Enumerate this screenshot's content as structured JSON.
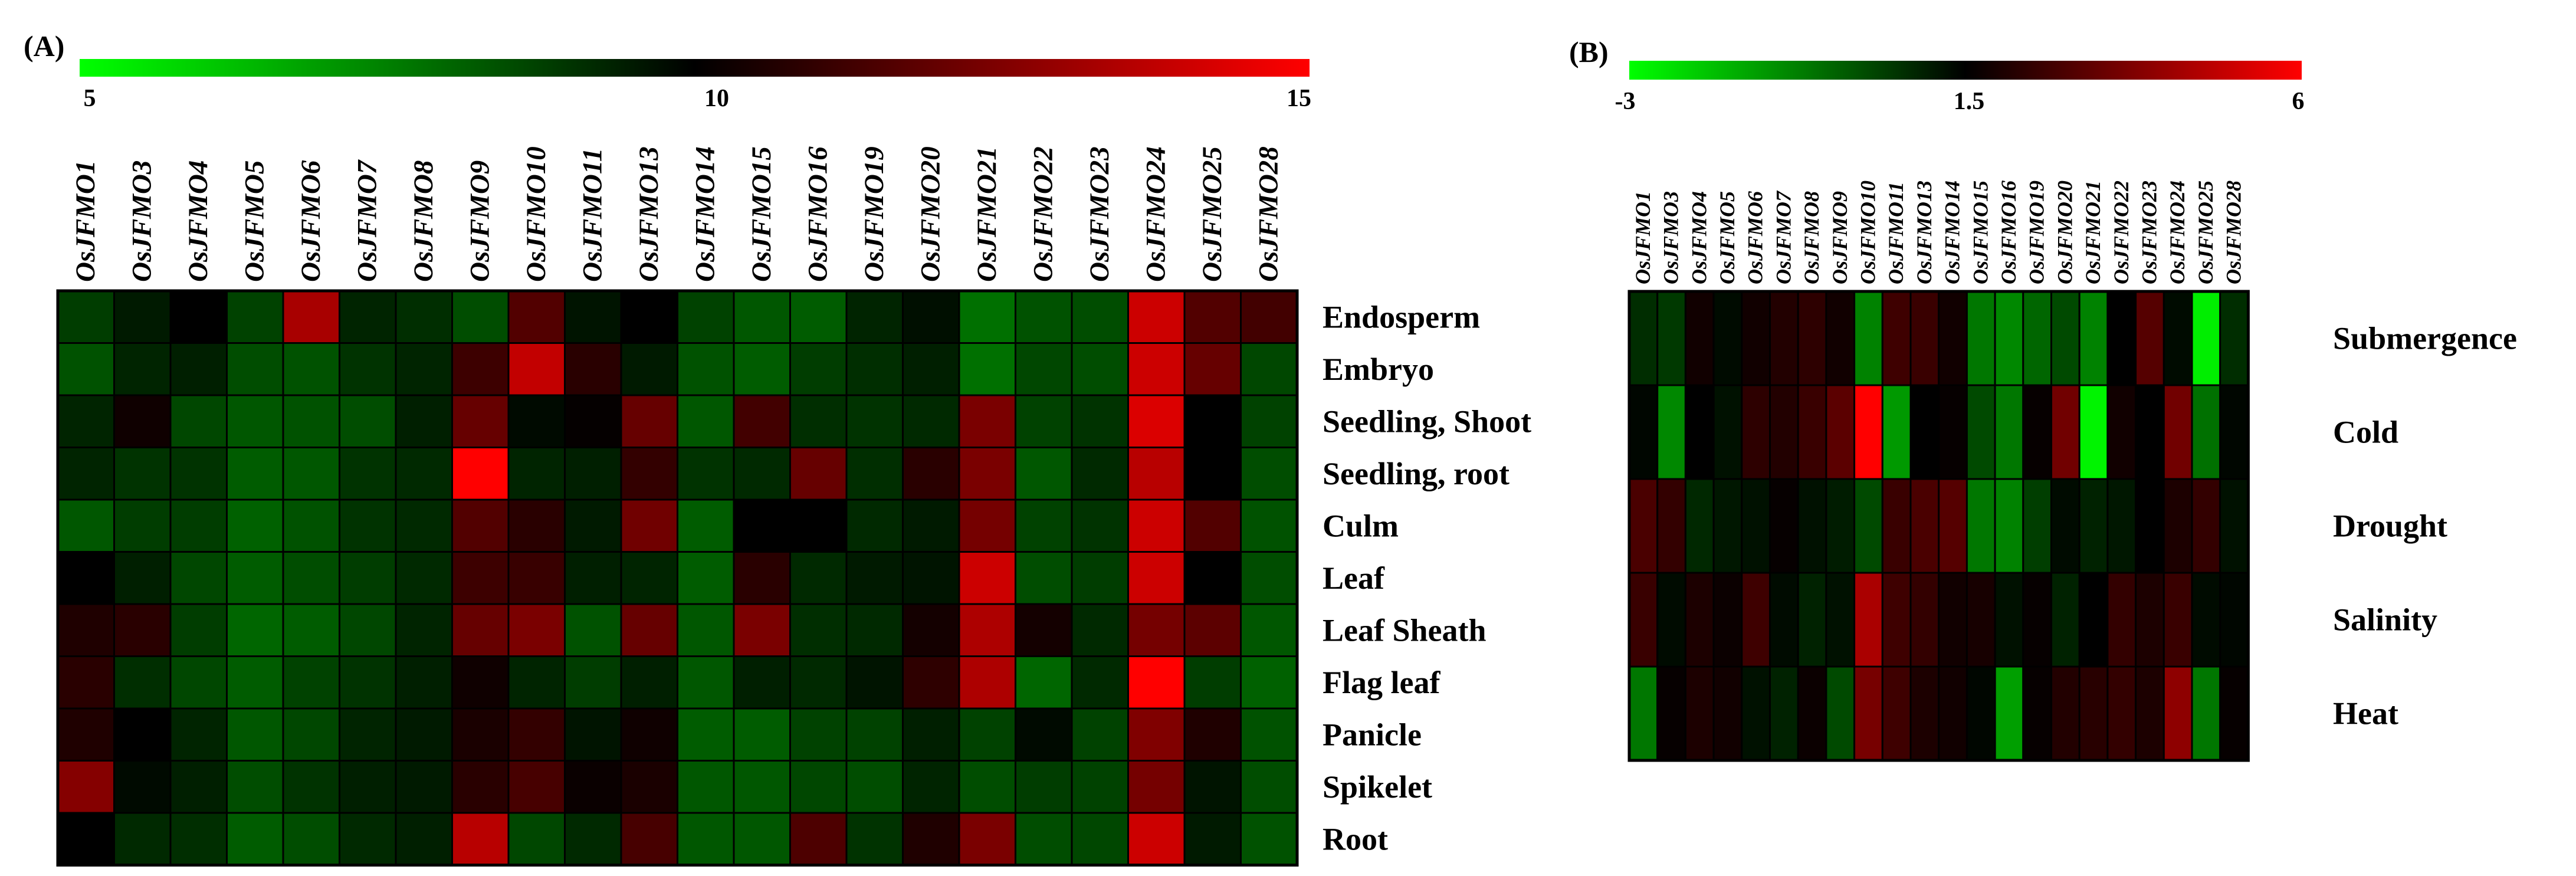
{
  "colors": {
    "low": "#00ff00",
    "mid": "#000000",
    "high": "#ff0000"
  },
  "chart_data": [
    {
      "type": "heatmap",
      "panel_label": "(A)",
      "title": "",
      "color_scale": {
        "min": 5,
        "mid": 10,
        "max": 15,
        "tick_labels": [
          "5",
          "10",
          "15"
        ]
      },
      "columns": [
        "OsJFMO1",
        "OsJFMO3",
        "OsJFMO4",
        "OsJFMO5",
        "OsJFMO6",
        "OsJFMO7",
        "OsJFMO8",
        "OsJFMO9",
        "OsJFMO10",
        "OsJFMO11",
        "OsJFMO13",
        "OsJFMO14",
        "OsJFMO15",
        "OsJFMO16",
        "OsJFMO19",
        "OsJFMO20",
        "OsJFMO21",
        "OsJFMO22",
        "OsJFMO23",
        "OsJFMO24",
        "OsJFMO25",
        "OsJFMO28"
      ],
      "rows": [
        "Endosperm",
        "Embryo",
        "Seedling, Shoot",
        "Seedling, root",
        "Culm",
        "Leaf",
        "Leaf Sheath",
        "Flag leaf",
        "Panicle",
        "Spikelet",
        "Root"
      ],
      "values": [
        [
          8.8,
          9.5,
          10.0,
          8.7,
          13.3,
          9.3,
          9.1,
          8.5,
          11.6,
          9.6,
          10.0,
          8.7,
          8.3,
          8.2,
          9.3,
          9.7,
          7.8,
          8.4,
          8.5,
          14.0,
          11.6,
          11.3
        ],
        [
          8.4,
          9.3,
          9.4,
          8.5,
          8.4,
          9.0,
          9.3,
          11.2,
          13.8,
          10.8,
          9.5,
          8.4,
          8.2,
          8.8,
          9.1,
          9.4,
          7.8,
          8.6,
          8.5,
          14.0,
          12.0,
          8.6
        ],
        [
          9.3,
          10.3,
          8.6,
          8.3,
          8.4,
          8.5,
          9.4,
          12.0,
          9.8,
          10.1,
          12.0,
          8.3,
          11.3,
          9.1,
          9.0,
          9.2,
          12.4,
          8.7,
          9.0,
          14.3,
          10.0,
          8.7
        ],
        [
          9.3,
          9.0,
          9.0,
          8.2,
          8.3,
          9.0,
          9.2,
          15.0,
          9.3,
          9.4,
          11.0,
          9.0,
          9.2,
          12.0,
          9.1,
          10.8,
          12.4,
          8.3,
          9.2,
          13.6,
          10.0,
          8.5
        ],
        [
          8.3,
          8.8,
          8.8,
          8.1,
          8.4,
          9.0,
          9.2,
          11.6,
          10.8,
          9.5,
          12.2,
          8.2,
          10.0,
          10.0,
          9.2,
          9.5,
          12.3,
          8.7,
          9.0,
          14.0,
          11.6,
          8.4
        ],
        [
          10.0,
          9.4,
          8.6,
          8.2,
          8.5,
          8.8,
          9.2,
          11.2,
          11.1,
          9.4,
          9.3,
          8.2,
          10.8,
          9.2,
          9.5,
          9.6,
          14.0,
          8.5,
          8.8,
          14.0,
          10.0,
          8.5
        ],
        [
          10.6,
          10.8,
          8.8,
          8.0,
          8.2,
          8.6,
          9.3,
          12.0,
          12.4,
          8.4,
          12.0,
          8.3,
          12.4,
          9.1,
          9.2,
          10.4,
          13.4,
          10.4,
          9.2,
          12.3,
          11.8,
          8.3
        ],
        [
          10.8,
          9.1,
          8.6,
          8.2,
          8.7,
          9.0,
          9.4,
          10.3,
          9.3,
          8.8,
          9.4,
          8.3,
          9.4,
          9.2,
          9.6,
          10.9,
          13.4,
          8.0,
          9.2,
          15.0,
          8.8,
          8.1
        ],
        [
          10.6,
          10.0,
          9.3,
          8.3,
          8.6,
          9.3,
          9.5,
          10.5,
          11.0,
          9.6,
          10.3,
          8.2,
          8.2,
          8.7,
          8.7,
          9.4,
          8.7,
          9.8,
          8.7,
          12.5,
          10.6,
          8.4
        ],
        [
          12.6,
          9.8,
          9.4,
          8.5,
          9.0,
          9.4,
          9.5,
          10.8,
          11.4,
          10.2,
          10.5,
          8.3,
          8.3,
          8.6,
          8.5,
          9.3,
          8.5,
          8.8,
          8.7,
          12.3,
          9.6,
          8.5
        ],
        [
          10.0,
          9.2,
          9.1,
          8.2,
          8.5,
          9.2,
          9.4,
          13.6,
          8.6,
          9.2,
          11.4,
          8.3,
          8.3,
          11.5,
          9.0,
          10.6,
          12.4,
          8.5,
          8.6,
          14.0,
          9.5,
          8.4
        ]
      ]
    },
    {
      "type": "heatmap",
      "panel_label": "(B)",
      "title": "",
      "color_scale": {
        "min": -3,
        "mid": 1.5,
        "max": 6,
        "tick_labels": [
          "-3",
          "1.5",
          "6"
        ]
      },
      "columns": [
        "OsJFMO1",
        "OsJFMO3",
        "OsJFMO4",
        "OsJFMO5",
        "OsJFMO6",
        "OsJFMO7",
        "OsJFMO8",
        "OsJFMO9",
        "OsJFMO10",
        "OsJFMO11",
        "OsJFMO13",
        "OsJFMO14",
        "OsJFMO15",
        "OsJFMO16",
        "OsJFMO19",
        "OsJFMO20",
        "OsJFMO21",
        "OsJFMO22",
        "OsJFMO23",
        "OsJFMO24",
        "OsJFMO25",
        "OsJFMO28"
      ],
      "rows": [
        "Submergence",
        "Cold",
        "Drought",
        "Salinity",
        "Heat"
      ],
      "values": [
        [
          0.7,
          0.5,
          1.8,
          1.3,
          1.8,
          2.1,
          2.3,
          1.8,
          -0.8,
          2.6,
          2.5,
          1.8,
          -0.6,
          -0.9,
          -0.3,
          0.2,
          -0.8,
          1.5,
          3.0,
          1.3,
          -2.7,
          0.7
        ],
        [
          1.4,
          -0.9,
          1.5,
          1.2,
          2.3,
          2.1,
          2.5,
          3.1,
          6.0,
          -1.2,
          1.5,
          1.6,
          0.2,
          -0.6,
          1.6,
          3.5,
          -2.8,
          1.8,
          1.5,
          3.5,
          -0.5,
          1.4
        ],
        [
          2.8,
          2.4,
          0.8,
          1.1,
          1.2,
          1.6,
          1.2,
          1.0,
          0.2,
          2.5,
          2.8,
          3.0,
          -0.6,
          -0.8,
          0.4,
          1.3,
          0.9,
          1.1,
          1.5,
          2.0,
          2.4,
          1.2
        ],
        [
          2.5,
          1.3,
          2.0,
          1.7,
          2.6,
          1.3,
          0.9,
          1.2,
          4.5,
          2.6,
          2.4,
          1.8,
          1.9,
          1.2,
          1.6,
          0.9,
          1.5,
          2.4,
          2.0,
          2.5,
          1.3,
          1.4
        ],
        [
          -0.6,
          1.6,
          2.0,
          1.8,
          1.2,
          0.9,
          1.7,
          0.2,
          3.6,
          2.6,
          2.0,
          1.8,
          1.4,
          -1.3,
          1.6,
          2.1,
          2.2,
          2.4,
          2.0,
          4.0,
          -0.6,
          1.6
        ]
      ]
    }
  ]
}
